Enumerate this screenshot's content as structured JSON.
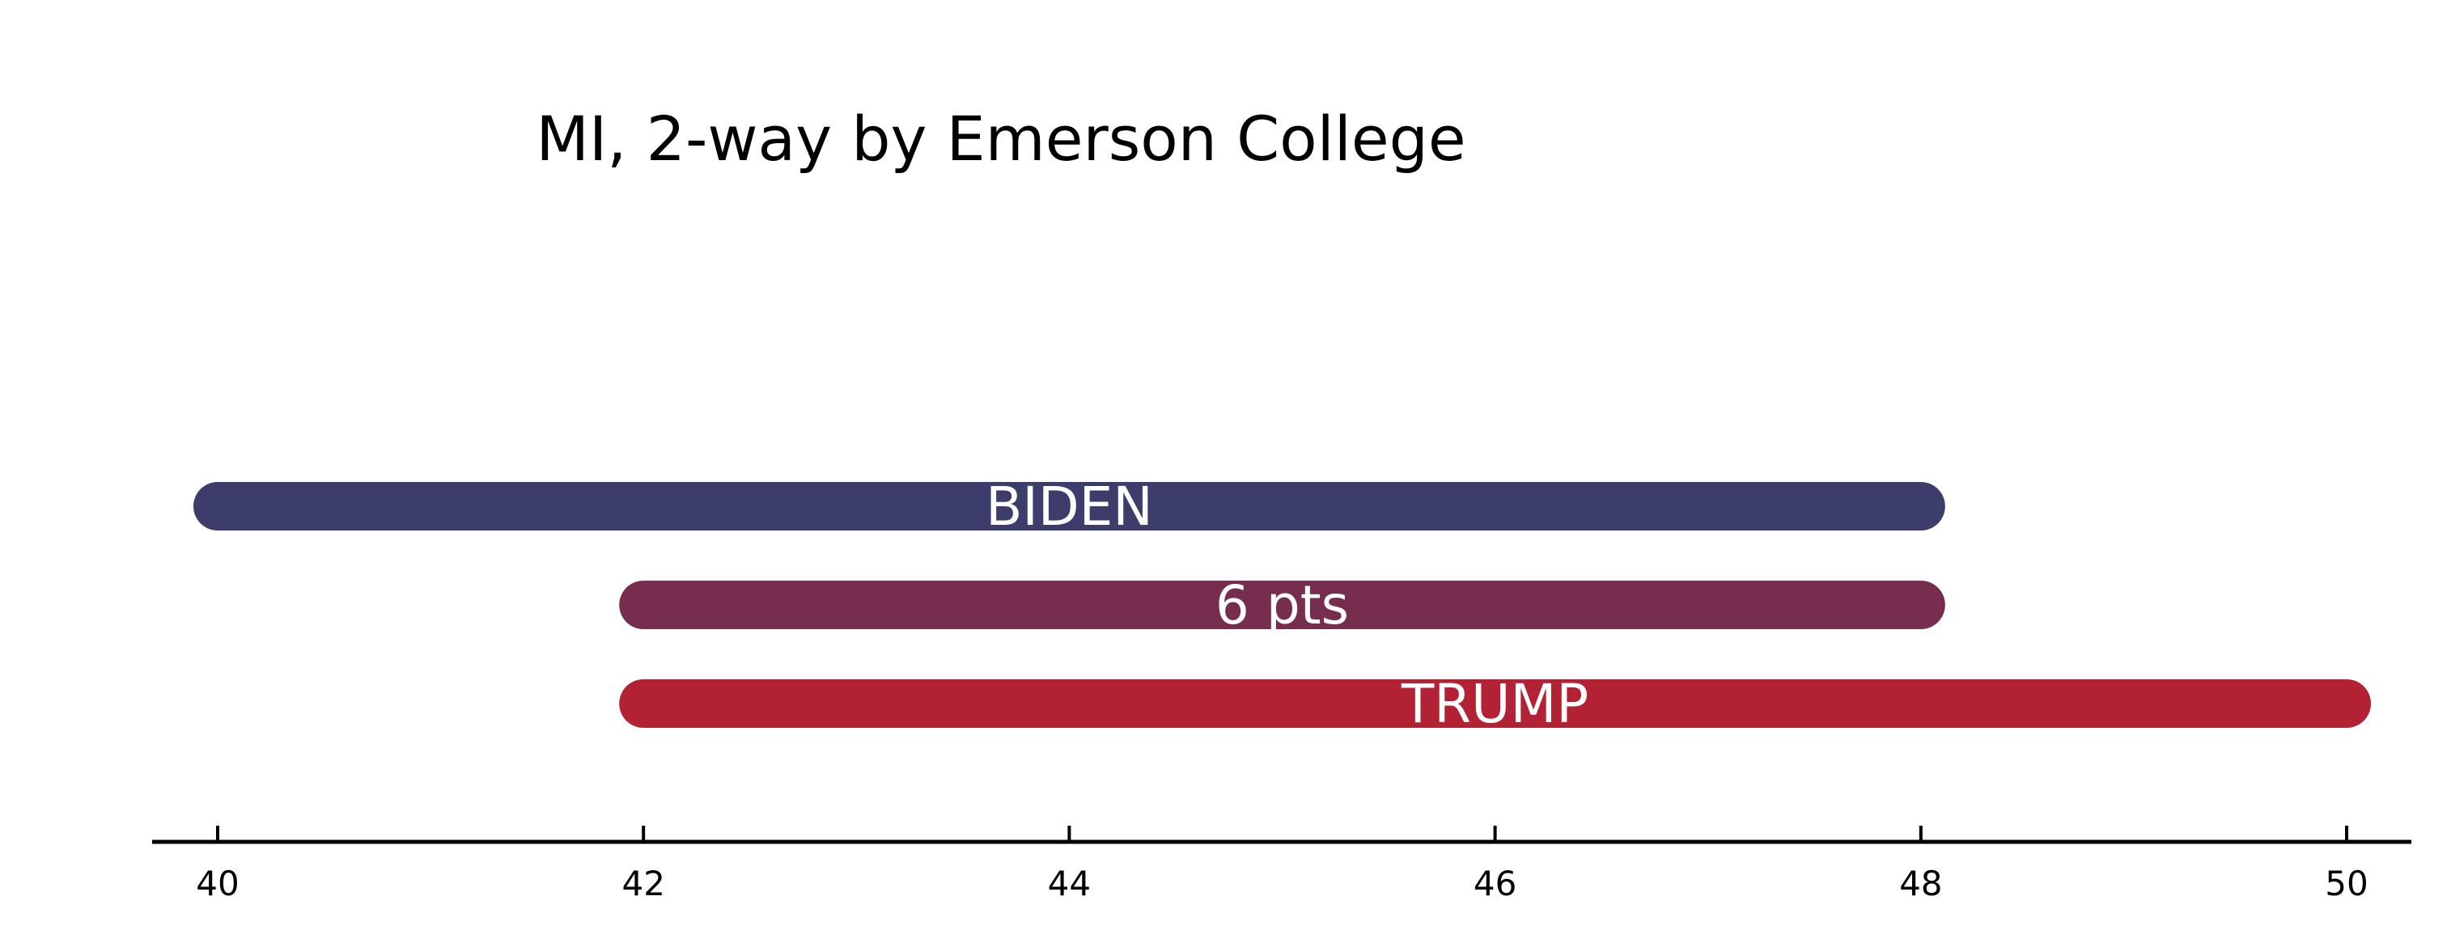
{
  "chart_data": {
    "type": "bar",
    "title": "MI, 2-way by Emerson College",
    "xlabel": "",
    "ylabel": "",
    "xlim": [
      39.8,
      50.25
    ],
    "xticks": [
      40,
      42,
      44,
      46,
      48,
      50
    ],
    "grid": false,
    "bars": [
      {
        "label": "BIDEN",
        "start": 40,
        "end": 48,
        "color": "#3d3d6b"
      },
      {
        "label": "6 pts",
        "start": 42,
        "end": 48,
        "color": "#762d4e"
      },
      {
        "label": "TRUMP",
        "start": 42,
        "end": 50,
        "color": "#b22234"
      }
    ]
  }
}
